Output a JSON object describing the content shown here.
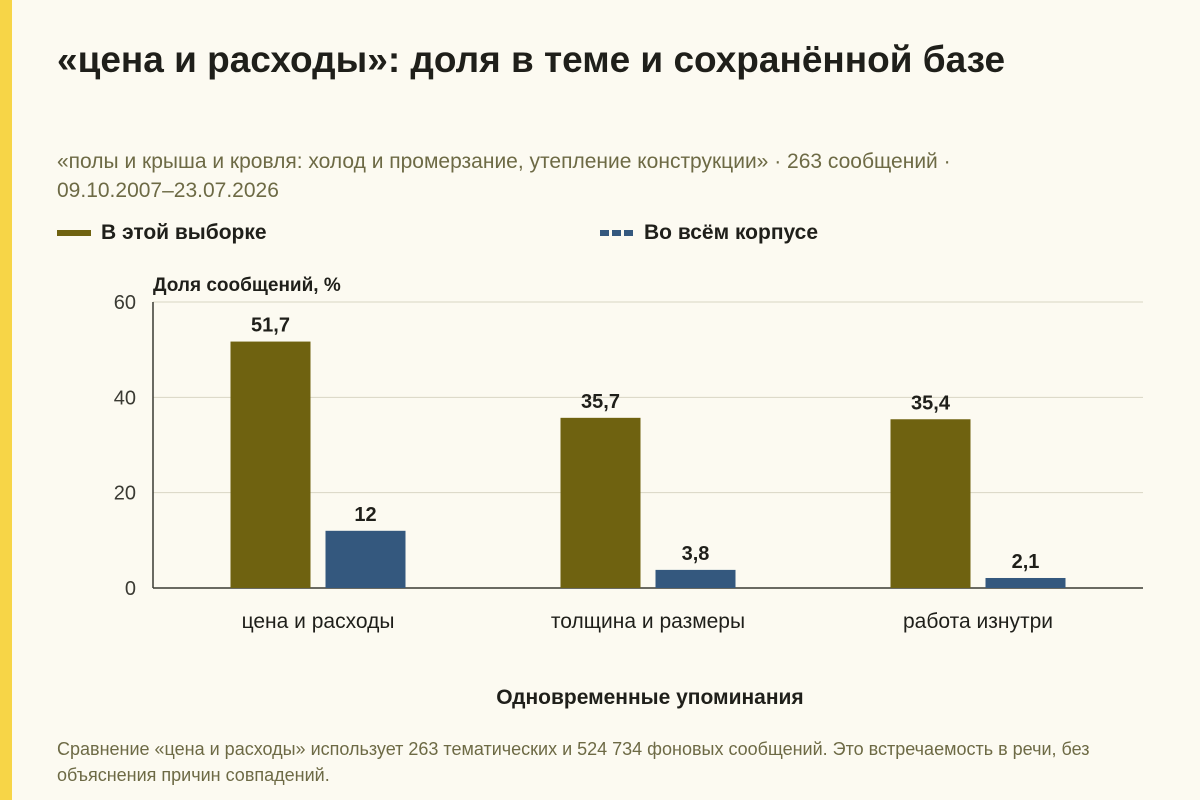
{
  "title": "«цена и расходы»: доля в теме и сохранённой базе",
  "subtitle": "«полы и крыша и кровля: холод и промерзание, утепление конструкции» · 263 сообщений · 09.10.2007–23.07.2026",
  "legend": {
    "selection": "В этой выборке",
    "corpus": "Во всём корпусе"
  },
  "footnote": "Сравнение «цена и расходы» использует 263 тематических и 524 734 фоновых сообщений. Это встречаемость в речи, без объяснения причин совпадений.",
  "colors": {
    "accent": "#f7d547",
    "selection": "#6f6210",
    "corpus": "#34587e",
    "grid": "#d9d5c4",
    "background": "#fcfaf1"
  },
  "chart_data": {
    "type": "bar",
    "ylabel": "Доля сообщений, %",
    "xlabel": "Одновременные упоминания",
    "ylim": [
      0,
      60
    ],
    "yticks": [
      0,
      20,
      40,
      60
    ],
    "grid": true,
    "legend_position": "top-left",
    "categories": [
      "цена и расходы",
      "толщина и размеры",
      "работа изнутри"
    ],
    "series": [
      {
        "name": "В этой выборке",
        "values": [
          51.7,
          35.7,
          35.4
        ],
        "labels": [
          "51,7",
          "35,7",
          "35,4"
        ]
      },
      {
        "name": "Во всём корпусе",
        "values": [
          12,
          3.8,
          2.1
        ],
        "labels": [
          "12",
          "3,8",
          "2,1"
        ]
      }
    ]
  }
}
